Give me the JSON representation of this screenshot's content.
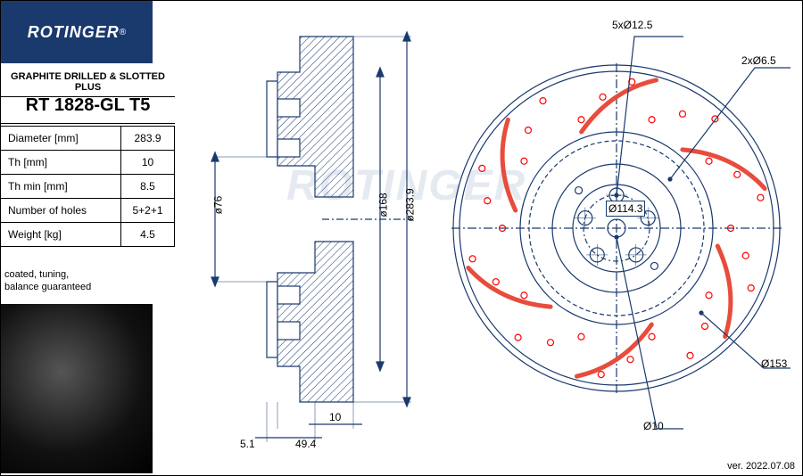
{
  "brand": "ROTINGER",
  "product_title": "GRAPHITE DRILLED & SLOTTED PLUS",
  "part_number": "RT 1828-GL T5",
  "specs": [
    {
      "label": "Diameter [mm]",
      "value": "283.9"
    },
    {
      "label": "Th [mm]",
      "value": "10"
    },
    {
      "label": "Th min [mm]",
      "value": "8.5"
    },
    {
      "label": "Number of holes",
      "value": "5+2+1"
    },
    {
      "label": "Weight [kg]",
      "value": "4.5"
    }
  ],
  "note": "coated, tuning,\nbalance guaranteed",
  "version": "ver. 2022.07.08",
  "cross_section": {
    "dims": {
      "d76": "ø76",
      "d168": "ø168",
      "d283_9": "ø283.9",
      "bottom_5_1": "5.1",
      "bottom_10": "10",
      "bottom_49_4": "49.4"
    },
    "line_color": "#1a3a6e",
    "hatch_color": "#1a3a6e"
  },
  "front_view": {
    "outer_d": 283.9,
    "hub_d": 168,
    "bolt_circle": 114.3,
    "callouts": {
      "c1": "5xØ12.5",
      "c2": "2xØ6.5",
      "c3": "Ø114.3",
      "c4": "Ø153",
      "c5": "Ø10"
    },
    "drill_hole_color": "#ff0000",
    "slot_color": "#e74c3c",
    "line_color": "#1a3a6e",
    "num_bolts": 5,
    "num_drill_holes": 30,
    "num_slots": 6
  }
}
